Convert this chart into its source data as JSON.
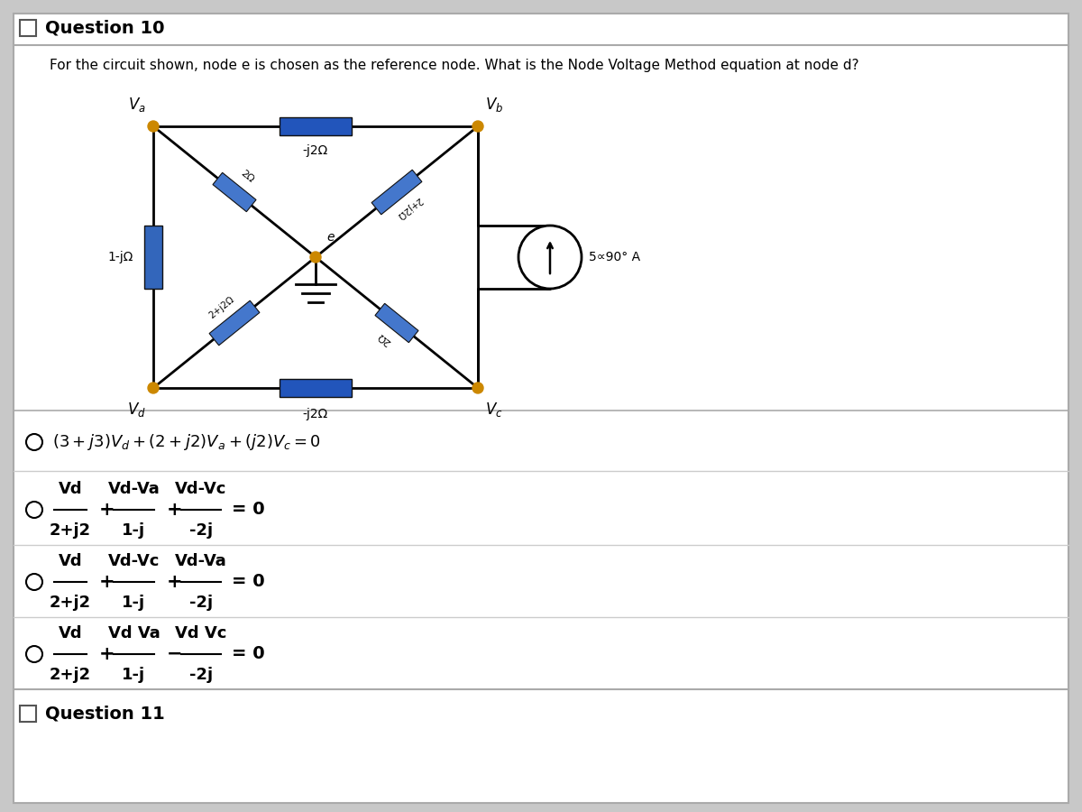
{
  "title": "Question 10",
  "subtitle": "For the circuit shown, node e is chosen as the reference node. What is the Node Voltage Method equation at node d?",
  "bg_color": "#c8c8c8",
  "panel_bg": "#ffffff",
  "footer": "Question 11",
  "impedance_top": "-j2Ω",
  "impedance_left": "1-jΩ",
  "impedance_bottom": "-j2Ω",
  "impedance_ul": "2Ω",
  "impedance_ur": "2+j2Ω",
  "impedance_ll": "2+j2Ω",
  "impedance_lr": "2Ω",
  "current_source": "5∝90° A",
  "node_box_color": "#2255bb",
  "node_dot_color": "#cc8800",
  "wire_color": "#111111",
  "diag_box_color": "#3366cc",
  "left_box_color": "#3366bb"
}
